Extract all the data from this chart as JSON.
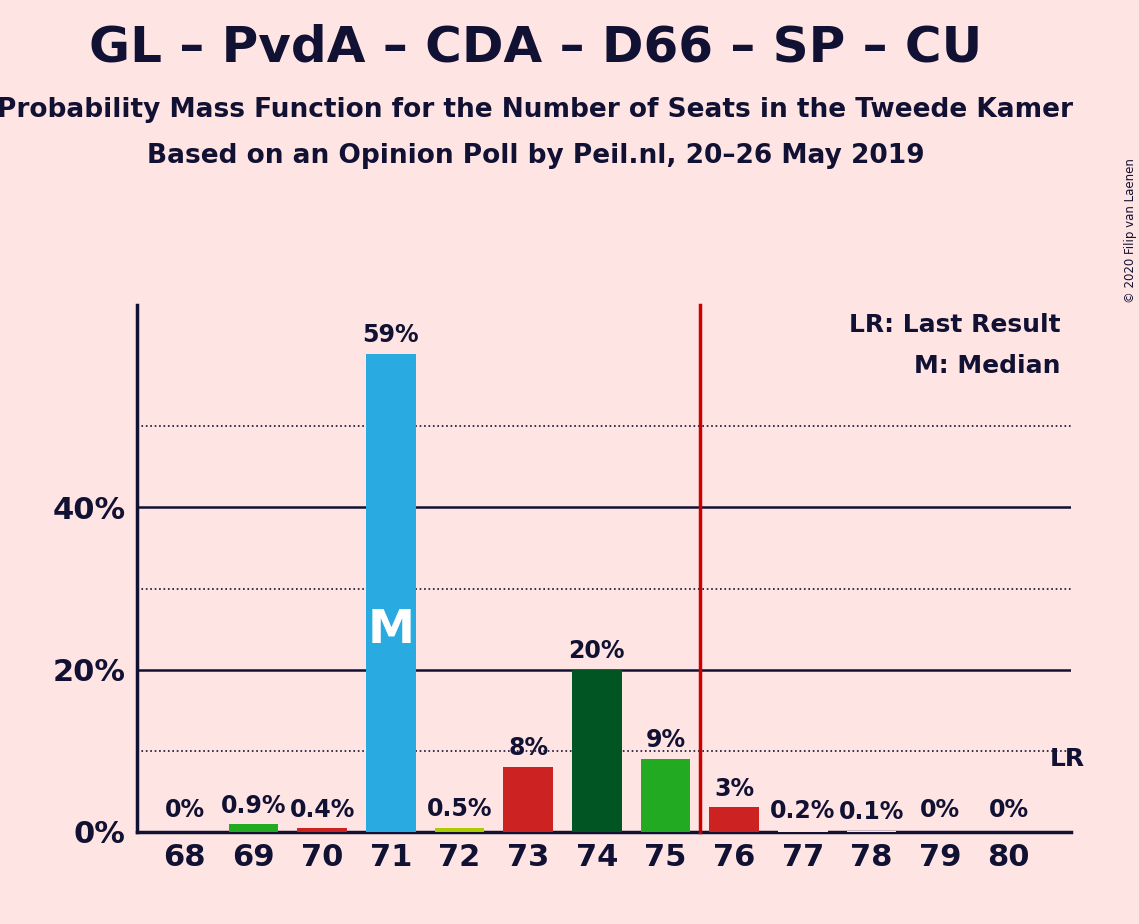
{
  "title": "GL – PvdA – CDA – D66 – SP – CU",
  "subtitle1": "Probability Mass Function for the Number of Seats in the Tweede Kamer",
  "subtitle2": "Based on an Opinion Poll by Peil.nl, 20–26 May 2019",
  "background_color": "#FFE4E4",
  "seats": [
    68,
    69,
    70,
    71,
    72,
    73,
    74,
    75,
    76,
    77,
    78,
    79,
    80
  ],
  "values": [
    0.0,
    0.9,
    0.4,
    59.0,
    0.5,
    8.0,
    20.0,
    9.0,
    3.0,
    0.2,
    0.1,
    0.0,
    0.0
  ],
  "bar_colors": [
    "#FFE4E4",
    "#22AA22",
    "#CC2222",
    "#29ABE2",
    "#AACC00",
    "#CC2222",
    "#005522",
    "#22AA22",
    "#CC2222",
    "#FFE4E4",
    "#FFE4E4",
    "#FFE4E4",
    "#FFE4E4"
  ],
  "label_values": [
    "0%",
    "0.9%",
    "0.4%",
    "59%",
    "0.5%",
    "8%",
    "20%",
    "9%",
    "3%",
    "0.2%",
    "0.1%",
    "0%",
    "0%"
  ],
  "median_seat": 71,
  "lr_seat": 75.5,
  "ylim": [
    0,
    65
  ],
  "yticks": [
    0,
    20,
    40
  ],
  "ytick_labels": [
    "0%",
    "20%",
    "40%"
  ],
  "solid_lines": [
    20,
    40
  ],
  "dotted_lines": [
    10,
    30,
    50
  ],
  "legend_lr": "LR: Last Result",
  "legend_m": "M: Median",
  "copyright": "© 2020 Filip van Laenen",
  "axis_color": "#111133",
  "title_fontsize": 36,
  "subtitle_fontsize": 19,
  "label_fontsize": 17,
  "tick_fontsize": 22
}
